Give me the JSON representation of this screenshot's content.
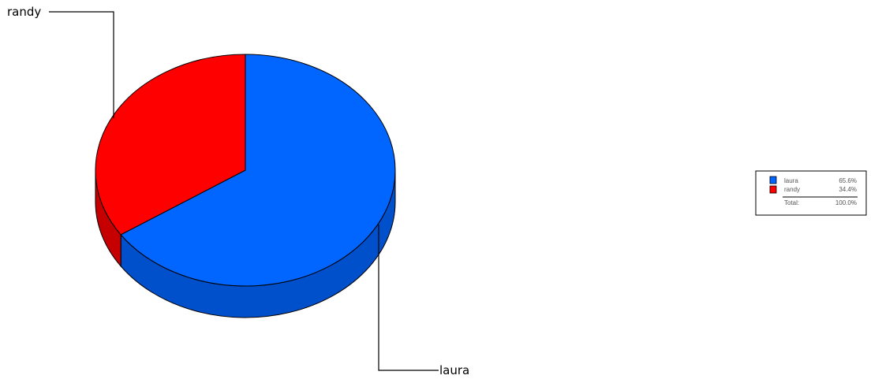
{
  "chart_data": {
    "type": "pie",
    "style": "3d",
    "title": "",
    "colors": {
      "laura": "#0066ff",
      "randy": "#ff0000"
    },
    "side_colors": {
      "laura": "#0050cc",
      "randy": "#c60000"
    },
    "slices": [
      {
        "label": "laura",
        "value": 65.6,
        "percent_text": "65.6%"
      },
      {
        "label": "randy",
        "value": 34.4,
        "percent_text": "34.4%"
      }
    ],
    "legend": {
      "position": "right",
      "total_label": "Total:",
      "total_text": "100.0%"
    }
  }
}
